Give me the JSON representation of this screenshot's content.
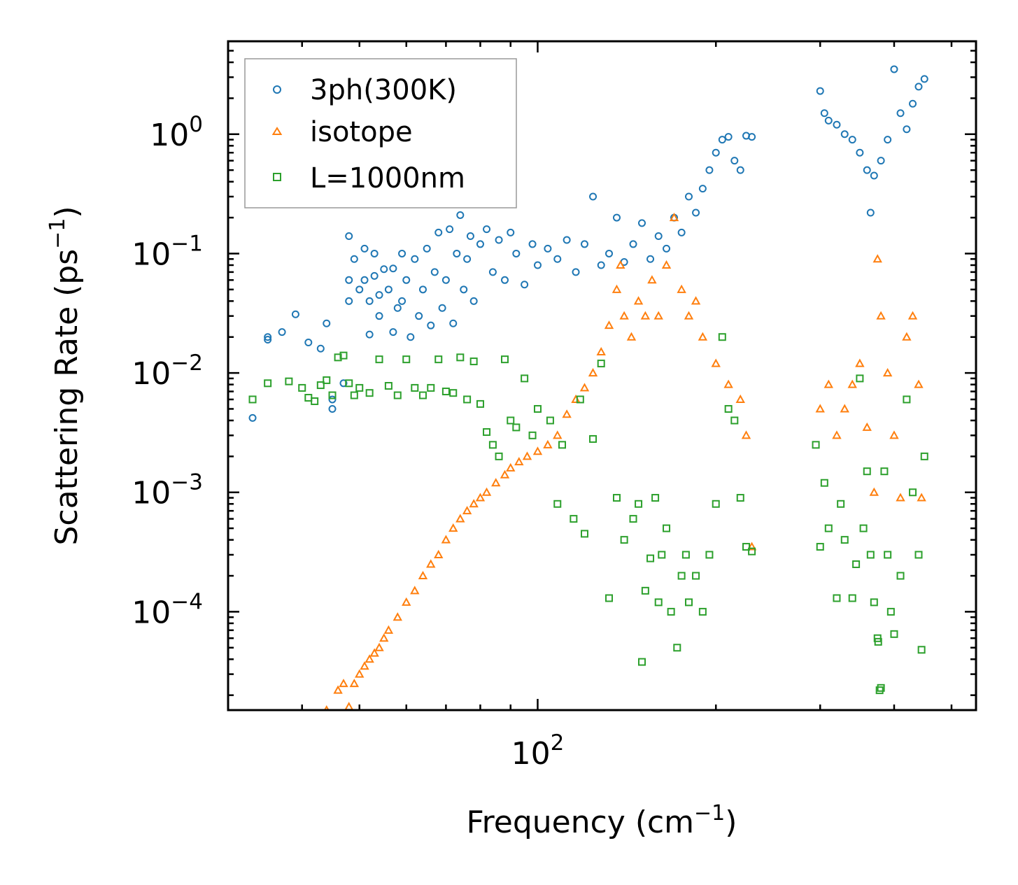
{
  "chart_data": {
    "type": "scatter",
    "xscale": "log",
    "yscale": "log",
    "xlabel": "Frequency (cm",
    "xlabel_sup": "−1",
    "xlabel_end": ")",
    "ylabel": "Scattering Rate (ps",
    "ylabel_sup": "−1",
    "ylabel_end": ")",
    "xlim": [
      30,
      550
    ],
    "ylim": [
      1.5e-05,
      6
    ],
    "xticks": [
      {
        "value": 100,
        "base": "10",
        "exp": "2"
      }
    ],
    "yticks": [
      {
        "value": 0.0001,
        "base": "10",
        "exp": "−4"
      },
      {
        "value": 0.001,
        "base": "10",
        "exp": "−3"
      },
      {
        "value": 0.01,
        "base": "10",
        "exp": "−2"
      },
      {
        "value": 0.1,
        "base": "10",
        "exp": "−1"
      },
      {
        "value": 1,
        "base": "10",
        "exp": "0"
      }
    ],
    "legend_position": "top-left",
    "series": [
      {
        "name": "3ph(300K)",
        "marker": "circle",
        "color": "#1f77b4",
        "points": [
          [
            33,
            0.0042
          ],
          [
            35,
            0.02
          ],
          [
            35,
            0.019
          ],
          [
            37,
            0.022
          ],
          [
            39,
            0.031
          ],
          [
            41,
            0.018
          ],
          [
            43,
            0.016
          ],
          [
            44,
            0.026
          ],
          [
            45,
            0.006
          ],
          [
            45,
            0.005
          ],
          [
            47,
            0.0082
          ],
          [
            48,
            0.14
          ],
          [
            48,
            0.06
          ],
          [
            48,
            0.04
          ],
          [
            49,
            0.09
          ],
          [
            50,
            0.05
          ],
          [
            51,
            0.11
          ],
          [
            51,
            0.06
          ],
          [
            52,
            0.04
          ],
          [
            52,
            0.021
          ],
          [
            53,
            0.1
          ],
          [
            53,
            0.065
          ],
          [
            54,
            0.03
          ],
          [
            54,
            0.045
          ],
          [
            55,
            0.074
          ],
          [
            56,
            0.05
          ],
          [
            57,
            0.075
          ],
          [
            57,
            0.022
          ],
          [
            58,
            0.035
          ],
          [
            59,
            0.04
          ],
          [
            59,
            0.1
          ],
          [
            60,
            0.06
          ],
          [
            61,
            0.02
          ],
          [
            62,
            0.09
          ],
          [
            63,
            0.03
          ],
          [
            64,
            0.05
          ],
          [
            65,
            0.11
          ],
          [
            66,
            0.025
          ],
          [
            67,
            0.07
          ],
          [
            68,
            0.15
          ],
          [
            69,
            0.035
          ],
          [
            70,
            0.06
          ],
          [
            71,
            0.16
          ],
          [
            72,
            0.026
          ],
          [
            73,
            0.1
          ],
          [
            74,
            0.21
          ],
          [
            75,
            0.05
          ],
          [
            76,
            0.09
          ],
          [
            77,
            0.14
          ],
          [
            78,
            0.04
          ],
          [
            80,
            0.12
          ],
          [
            82,
            0.16
          ],
          [
            84,
            0.07
          ],
          [
            86,
            0.13
          ],
          [
            88,
            0.06
          ],
          [
            90,
            0.15
          ],
          [
            92,
            0.1
          ],
          [
            95,
            0.055
          ],
          [
            98,
            0.12
          ],
          [
            100,
            0.08
          ],
          [
            104,
            0.11
          ],
          [
            108,
            0.09
          ],
          [
            112,
            0.13
          ],
          [
            116,
            0.07
          ],
          [
            120,
            0.12
          ],
          [
            124,
            0.3
          ],
          [
            128,
            0.08
          ],
          [
            132,
            0.1
          ],
          [
            136,
            0.2
          ],
          [
            140,
            0.085
          ],
          [
            145,
            0.12
          ],
          [
            150,
            0.18
          ],
          [
            155,
            0.09
          ],
          [
            160,
            0.14
          ],
          [
            165,
            0.11
          ],
          [
            170,
            0.2
          ],
          [
            175,
            0.15
          ],
          [
            180,
            0.3
          ],
          [
            185,
            0.22
          ],
          [
            190,
            0.35
          ],
          [
            195,
            0.5
          ],
          [
            200,
            0.7
          ],
          [
            205,
            0.9
          ],
          [
            210,
            0.95
          ],
          [
            215,
            0.6
          ],
          [
            220,
            0.5
          ],
          [
            225,
            0.97
          ],
          [
            230,
            0.95
          ],
          [
            300,
            2.3
          ],
          [
            305,
            1.5
          ],
          [
            310,
            1.3
          ],
          [
            320,
            1.2
          ],
          [
            330,
            1.0
          ],
          [
            340,
            0.9
          ],
          [
            350,
            0.7
          ],
          [
            360,
            0.5
          ],
          [
            365,
            0.22
          ],
          [
            370,
            0.45
          ],
          [
            380,
            0.6
          ],
          [
            390,
            0.9
          ],
          [
            400,
            3.5
          ],
          [
            410,
            1.5
          ],
          [
            420,
            1.1
          ],
          [
            430,
            1.8
          ],
          [
            440,
            2.5
          ],
          [
            450,
            2.9
          ]
        ]
      },
      {
        "name": "isotope",
        "marker": "triangle",
        "color": "#ff7f0e",
        "points": [
          [
            44,
            1.5e-05
          ],
          [
            46,
            2.2e-05
          ],
          [
            47,
            2.5e-05
          ],
          [
            48,
            1.6e-05
          ],
          [
            49,
            2.5e-05
          ],
          [
            50,
            3e-05
          ],
          [
            51,
            3.5e-05
          ],
          [
            52,
            4e-05
          ],
          [
            53,
            4.5e-05
          ],
          [
            54,
            5e-05
          ],
          [
            55,
            6e-05
          ],
          [
            56,
            7e-05
          ],
          [
            58,
            9e-05
          ],
          [
            60,
            0.00012
          ],
          [
            62,
            0.00015
          ],
          [
            64,
            0.0002
          ],
          [
            66,
            0.00025
          ],
          [
            68,
            0.0003
          ],
          [
            70,
            0.0004
          ],
          [
            72,
            0.0005
          ],
          [
            74,
            0.0006
          ],
          [
            76,
            0.0007
          ],
          [
            78,
            0.0008
          ],
          [
            80,
            0.0009
          ],
          [
            82,
            0.001
          ],
          [
            85,
            0.0012
          ],
          [
            88,
            0.0014
          ],
          [
            90,
            0.0016
          ],
          [
            93,
            0.0018
          ],
          [
            96,
            0.002
          ],
          [
            100,
            0.0022
          ],
          [
            104,
            0.0025
          ],
          [
            108,
            0.003
          ],
          [
            112,
            0.0045
          ],
          [
            116,
            0.006
          ],
          [
            120,
            0.0075
          ],
          [
            124,
            0.01
          ],
          [
            128,
            0.015
          ],
          [
            132,
            0.025
          ],
          [
            136,
            0.05
          ],
          [
            138,
            0.08
          ],
          [
            140,
            0.03
          ],
          [
            144,
            0.02
          ],
          [
            148,
            0.04
          ],
          [
            152,
            0.03
          ],
          [
            156,
            0.06
          ],
          [
            160,
            0.03
          ],
          [
            165,
            0.08
          ],
          [
            170,
            0.2
          ],
          [
            175,
            0.05
          ],
          [
            180,
            0.03
          ],
          [
            185,
            0.04
          ],
          [
            190,
            0.02
          ],
          [
            200,
            0.012
          ],
          [
            210,
            0.008
          ],
          [
            220,
            0.006
          ],
          [
            230,
            0.00035
          ],
          [
            225,
            0.003
          ],
          [
            300,
            0.005
          ],
          [
            310,
            0.008
          ],
          [
            320,
            0.003
          ],
          [
            330,
            0.005
          ],
          [
            340,
            0.008
          ],
          [
            350,
            0.012
          ],
          [
            360,
            0.0035
          ],
          [
            370,
            0.001
          ],
          [
            375,
            0.09
          ],
          [
            380,
            0.03
          ],
          [
            390,
            0.01
          ],
          [
            400,
            0.003
          ],
          [
            410,
            0.0009
          ],
          [
            420,
            0.02
          ],
          [
            430,
            0.03
          ],
          [
            440,
            0.008
          ],
          [
            445,
            0.0009
          ]
        ]
      },
      {
        "name": "L=1000nm",
        "marker": "square",
        "color": "#2ca02c",
        "points": [
          [
            33,
            0.006
          ],
          [
            35,
            0.0082
          ],
          [
            38,
            0.0085
          ],
          [
            40,
            0.0075
          ],
          [
            41,
            0.0062
          ],
          [
            42,
            0.0058
          ],
          [
            43,
            0.0079
          ],
          [
            44,
            0.0087
          ],
          [
            45,
            0.0065
          ],
          [
            46,
            0.0135
          ],
          [
            47,
            0.014
          ],
          [
            48,
            0.0082
          ],
          [
            49,
            0.0065
          ],
          [
            50,
            0.0075
          ],
          [
            52,
            0.0068
          ],
          [
            54,
            0.013
          ],
          [
            56,
            0.0078
          ],
          [
            58,
            0.0065
          ],
          [
            60,
            0.013
          ],
          [
            62,
            0.0075
          ],
          [
            64,
            0.0065
          ],
          [
            66,
            0.0075
          ],
          [
            68,
            0.013
          ],
          [
            70,
            0.007
          ],
          [
            72,
            0.0068
          ],
          [
            74,
            0.0135
          ],
          [
            76,
            0.006
          ],
          [
            78,
            0.0125
          ],
          [
            80,
            0.0055
          ],
          [
            82,
            0.0032
          ],
          [
            84,
            0.0025
          ],
          [
            86,
            0.002
          ],
          [
            88,
            0.013
          ],
          [
            90,
            0.004
          ],
          [
            92,
            0.0035
          ],
          [
            95,
            0.009
          ],
          [
            98,
            0.003
          ],
          [
            100,
            0.005
          ],
          [
            105,
            0.004
          ],
          [
            108,
            0.0008
          ],
          [
            110,
            0.0025
          ],
          [
            115,
            0.0006
          ],
          [
            118,
            0.006
          ],
          [
            120,
            0.00045
          ],
          [
            124,
            0.0028
          ],
          [
            128,
            0.012
          ],
          [
            132,
            0.00013
          ],
          [
            136,
            0.0009
          ],
          [
            140,
            0.0004
          ],
          [
            145,
            0.0006
          ],
          [
            148,
            0.0008
          ],
          [
            150,
            3.8e-05
          ],
          [
            152,
            0.00015
          ],
          [
            155,
            0.00028
          ],
          [
            158,
            0.0009
          ],
          [
            160,
            0.00012
          ],
          [
            162,
            0.0003
          ],
          [
            165,
            0.0005
          ],
          [
            168,
            0.0001
          ],
          [
            172,
            5e-05
          ],
          [
            175,
            0.0002
          ],
          [
            178,
            0.0003
          ],
          [
            180,
            0.00012
          ],
          [
            185,
            0.0002
          ],
          [
            190,
            0.0001
          ],
          [
            195,
            0.0003
          ],
          [
            200,
            0.0008
          ],
          [
            205,
            0.02
          ],
          [
            210,
            0.005
          ],
          [
            215,
            0.004
          ],
          [
            220,
            0.0009
          ],
          [
            225,
            0.00035
          ],
          [
            230,
            0.00032
          ],
          [
            295,
            0.0025
          ],
          [
            300,
            0.00035
          ],
          [
            305,
            0.0012
          ],
          [
            310,
            0.0005
          ],
          [
            320,
            0.00013
          ],
          [
            325,
            0.0008
          ],
          [
            330,
            0.0004
          ],
          [
            340,
            0.00013
          ],
          [
            345,
            0.00025
          ],
          [
            350,
            0.009
          ],
          [
            355,
            0.0005
          ],
          [
            360,
            0.0015
          ],
          [
            365,
            0.0003
          ],
          [
            370,
            0.00012
          ],
          [
            375,
            6e-05
          ],
          [
            376,
            5.6e-05
          ],
          [
            378,
            2.2e-05
          ],
          [
            380,
            2.3e-05
          ],
          [
            385,
            0.0015
          ],
          [
            390,
            0.0003
          ],
          [
            395,
            0.0001
          ],
          [
            400,
            6.5e-05
          ],
          [
            410,
            0.0002
          ],
          [
            420,
            0.006
          ],
          [
            430,
            0.001
          ],
          [
            440,
            0.0003
          ],
          [
            445,
            4.8e-05
          ],
          [
            450,
            0.002
          ]
        ]
      }
    ]
  }
}
